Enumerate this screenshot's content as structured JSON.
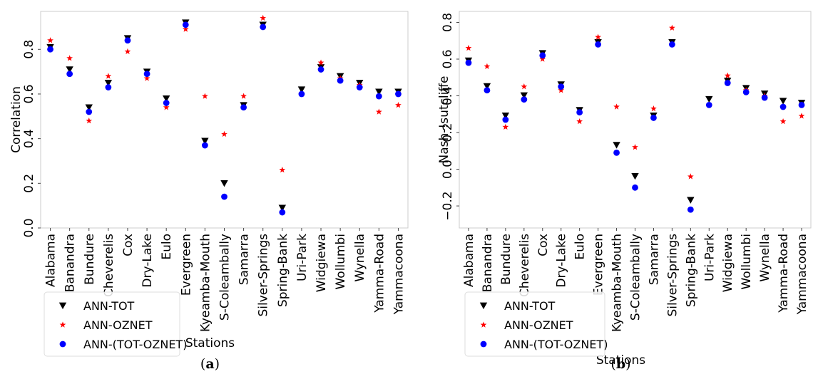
{
  "chart_data": [
    {
      "type": "scatter",
      "panel_label": "a",
      "xlabel": "Stations",
      "ylabel": "Correlation",
      "ylim": [
        0.0,
        0.97
      ],
      "yticks": [
        0.0,
        0.2,
        0.4,
        0.6,
        0.8
      ],
      "ytick_labels": [
        "0.0",
        "0.2",
        "0.4",
        "0.6",
        "0.8"
      ],
      "grid": false,
      "legend_position": "lower-left",
      "categories": [
        "Alabama",
        "Banandra",
        "Bundure",
        "Cheverelis",
        "Cox",
        "Dry-Lake",
        "Eulo",
        "Evergreen",
        "Kyeamba-Mouth",
        "S-Coleambally",
        "Samarra",
        "Silver-Springs",
        "Spring-Bank",
        "Uri-Park",
        "Widgiewa",
        "Wollumbi",
        "Wynella",
        "Yamma-Road",
        "Yammacoona"
      ],
      "series": [
        {
          "name": "ANN-TOT",
          "marker": "triangle-down",
          "color": "#000000",
          "values": [
            0.8,
            0.7,
            0.53,
            0.64,
            0.84,
            0.69,
            0.57,
            0.91,
            0.38,
            0.19,
            0.54,
            0.9,
            0.08,
            0.61,
            0.71,
            0.67,
            0.64,
            0.6,
            0.6
          ]
        },
        {
          "name": "ANN-OZNET",
          "marker": "star",
          "color": "#ff0000",
          "values": [
            0.84,
            0.76,
            0.48,
            0.68,
            0.79,
            0.67,
            0.54,
            0.89,
            0.59,
            0.42,
            0.59,
            0.94,
            0.26,
            0.6,
            0.74,
            0.67,
            0.64,
            0.52,
            0.55
          ]
        },
        {
          "name": "ANN-(TOT-OZNET)",
          "marker": "circle",
          "color": "#0000ff",
          "values": [
            0.8,
            0.69,
            0.52,
            0.63,
            0.84,
            0.69,
            0.56,
            0.91,
            0.37,
            0.14,
            0.54,
            0.9,
            0.07,
            0.6,
            0.71,
            0.66,
            0.63,
            0.59,
            0.6
          ]
        }
      ]
    },
    {
      "type": "scatter",
      "panel_label": "b",
      "xlabel": "Stations",
      "ylabel": "Nash-!sutcliffe",
      "ylim": [
        -0.32,
        0.86
      ],
      "yticks": [
        -0.2,
        0.0,
        0.2,
        0.4,
        0.6,
        0.8
      ],
      "ytick_labels": [
        "−0.2",
        "0.0",
        "0.2",
        "0.4",
        "0.6",
        "0.8"
      ],
      "grid": false,
      "legend_position": "lower-left",
      "categories": [
        "Alabama",
        "Banandra",
        "Bundure",
        "Cheverelis",
        "Cox",
        "Dry-Lake",
        "Eulo",
        "Evergreen",
        "Kyeamba-Mouth",
        "S-Coleambally",
        "Samarra",
        "Silver-Springs",
        "Spring-Bank",
        "Uri-Park",
        "Widgiewa",
        "Wollumbi",
        "Wynella",
        "Yamma-Road",
        "Yammacoona"
      ],
      "series": [
        {
          "name": "ANN-TOT",
          "marker": "triangle-down",
          "color": "#000000",
          "values": [
            0.58,
            0.44,
            0.28,
            0.39,
            0.62,
            0.45,
            0.31,
            0.68,
            0.12,
            -0.05,
            0.28,
            0.68,
            -0.18,
            0.37,
            0.47,
            0.43,
            0.4,
            0.36,
            0.35
          ]
        },
        {
          "name": "ANN-OZNET",
          "marker": "star",
          "color": "#ff0000",
          "values": [
            0.66,
            0.56,
            0.23,
            0.45,
            0.6,
            0.43,
            0.26,
            0.72,
            0.34,
            0.12,
            0.33,
            0.77,
            -0.04,
            0.35,
            0.51,
            0.43,
            0.4,
            0.26,
            0.29
          ]
        },
        {
          "name": "ANN-(TOT-OZNET)",
          "marker": "circle",
          "color": "#0000ff",
          "values": [
            0.58,
            0.43,
            0.27,
            0.38,
            0.62,
            0.45,
            0.31,
            0.68,
            0.09,
            -0.1,
            0.28,
            0.68,
            -0.22,
            0.35,
            0.47,
            0.42,
            0.39,
            0.34,
            0.35
          ]
        }
      ]
    }
  ]
}
